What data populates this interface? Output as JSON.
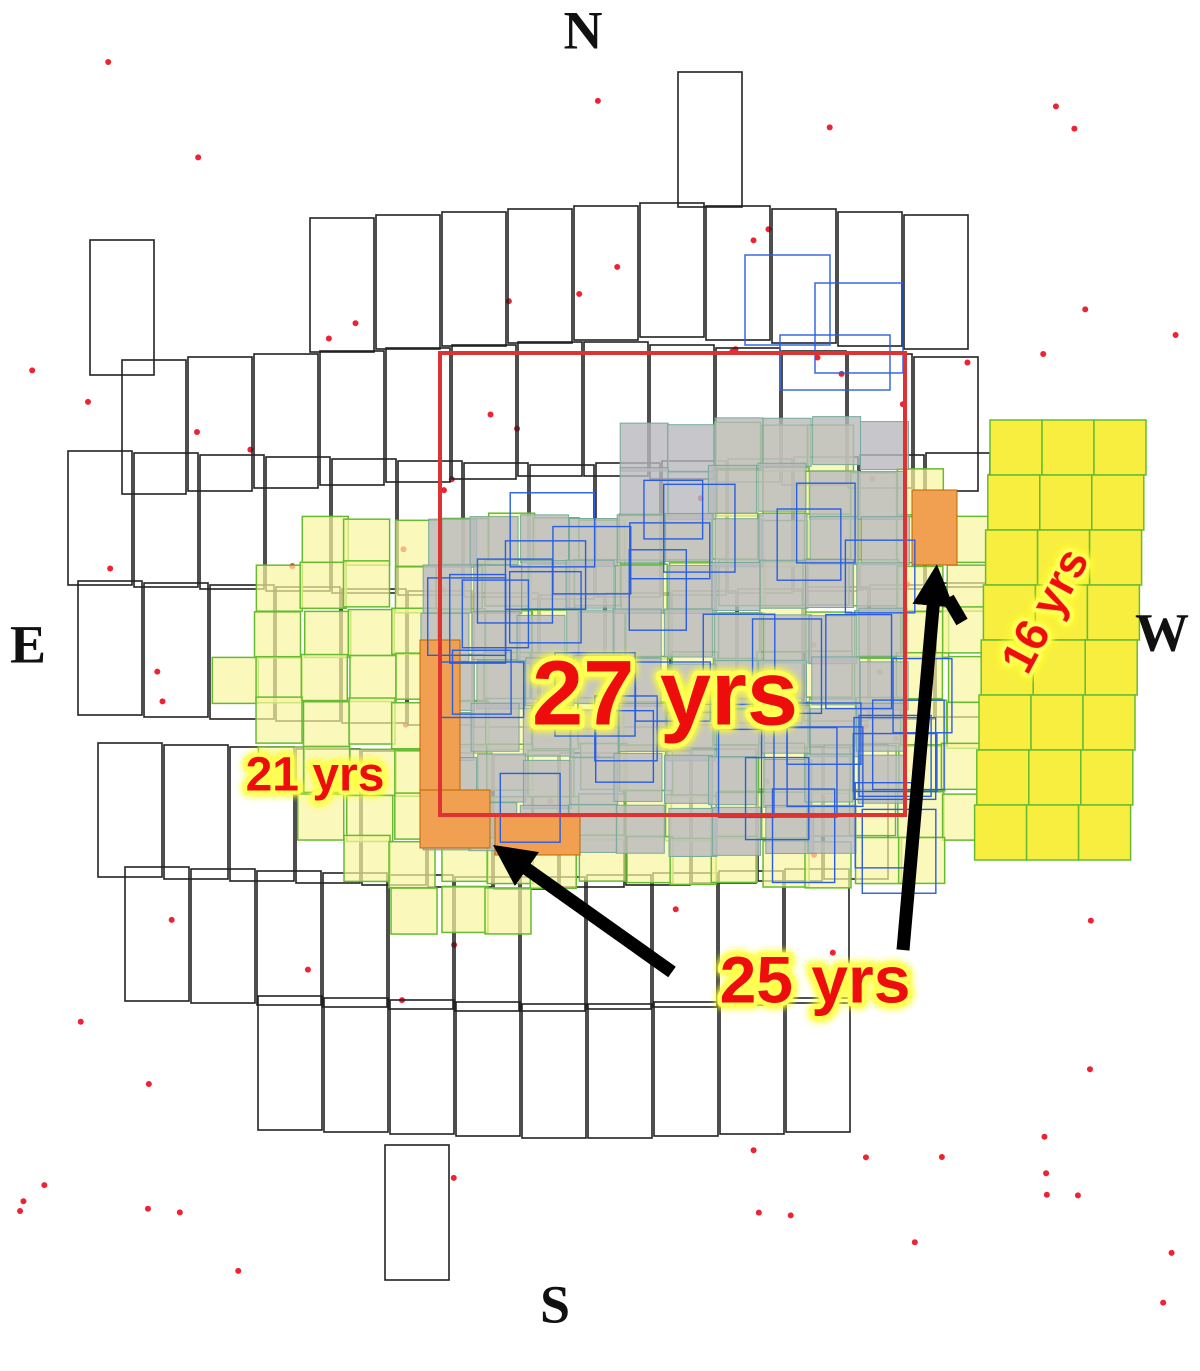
{
  "compass": {
    "north": "N",
    "south": "S",
    "east": "E",
    "west": "W"
  },
  "labels": {
    "center": "27 yrs",
    "east": "21 yrs",
    "arrows": "25 yrs",
    "west": "16 yrs"
  }
}
